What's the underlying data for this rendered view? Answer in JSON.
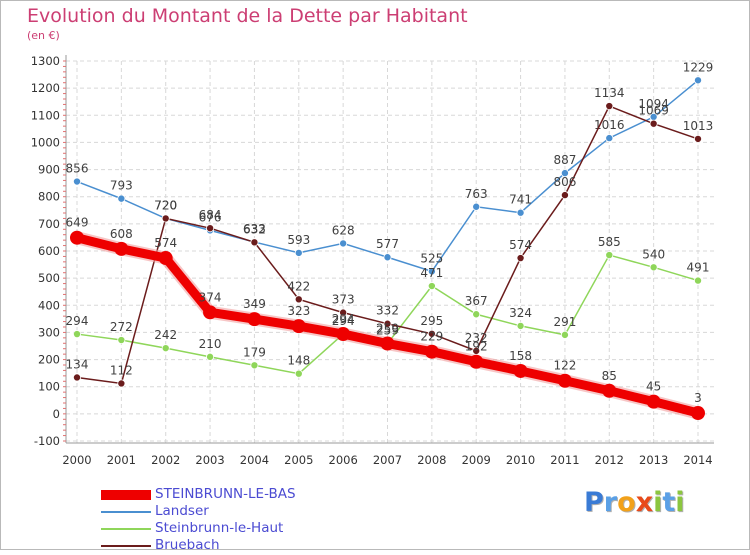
{
  "title": "Evolution du Montant de la Dette par Habitant",
  "unit": "(en €)",
  "logo": {
    "text": "Proxiti",
    "letters": [
      "P",
      "r",
      "o",
      "x",
      "i",
      "t",
      "i"
    ],
    "colors": [
      "#3a7bd5",
      "#5aa0e6",
      "#f2a11a",
      "#e84a1a",
      "#8cc63f",
      "#5aa0e6",
      "#8cc63f"
    ]
  },
  "chart_data": {
    "type": "line",
    "x": [
      "2000",
      "2001",
      "2002",
      "2003",
      "2004",
      "2005",
      "2006",
      "2007",
      "2008",
      "2009",
      "2010",
      "2011",
      "2012",
      "2013",
      "2014"
    ],
    "ylim": [
      -100,
      1300
    ],
    "yticks": [
      "-100",
      "0",
      "100",
      "200",
      "300",
      "400",
      "500",
      "600",
      "700",
      "800",
      "900",
      "1000",
      "1100",
      "1200",
      "1300"
    ],
    "grid": true,
    "legend_position": "bottom-left",
    "series": [
      {
        "name": "Landser",
        "color": "#4a8fd0",
        "values": [
          856,
          793,
          720,
          676,
          633,
          593,
          628,
          577,
          525,
          763,
          741,
          887,
          1016,
          1094,
          1229
        ],
        "labels": [
          "856",
          "793",
          "720",
          "676",
          "633",
          "593",
          "628",
          "577",
          "525",
          "763",
          "741",
          "887",
          "1016",
          "1094",
          "1229"
        ]
      },
      {
        "name": "Steinbrunn-le-Haut",
        "color": "#8fd65a",
        "values": [
          294,
          272,
          242,
          210,
          179,
          148,
          294,
          259,
          471,
          367,
          324,
          291,
          585,
          540,
          491
        ],
        "labels": [
          "294",
          "272",
          "242",
          "210",
          "179",
          "148",
          "294",
          "259",
          "471",
          "367",
          "324",
          "291",
          "585",
          "540",
          "491"
        ]
      },
      {
        "name": "Bruebach",
        "color": "#6b1c1c",
        "values": [
          134,
          112,
          720,
          684,
          632,
          422,
          373,
          332,
          295,
          232,
          574,
          806,
          1134,
          1069,
          1013
        ],
        "labels": [
          "134",
          "112",
          "720",
          "684",
          "632",
          "422",
          "373",
          "332",
          "295",
          "232",
          "574",
          "806",
          "1134",
          "1069",
          "1013"
        ]
      },
      {
        "name": "STEINBRUNN-LE-BAS",
        "color": "#ee0000",
        "values": [
          649,
          608,
          574,
          374,
          349,
          323,
          294,
          259,
          229,
          192,
          158,
          122,
          85,
          45,
          3
        ],
        "labels": [
          "649",
          "608",
          "574",
          "374",
          "349",
          "323",
          "294",
          "259",
          "229",
          "192",
          "158",
          "122",
          "85",
          "45",
          "3"
        ]
      }
    ]
  }
}
